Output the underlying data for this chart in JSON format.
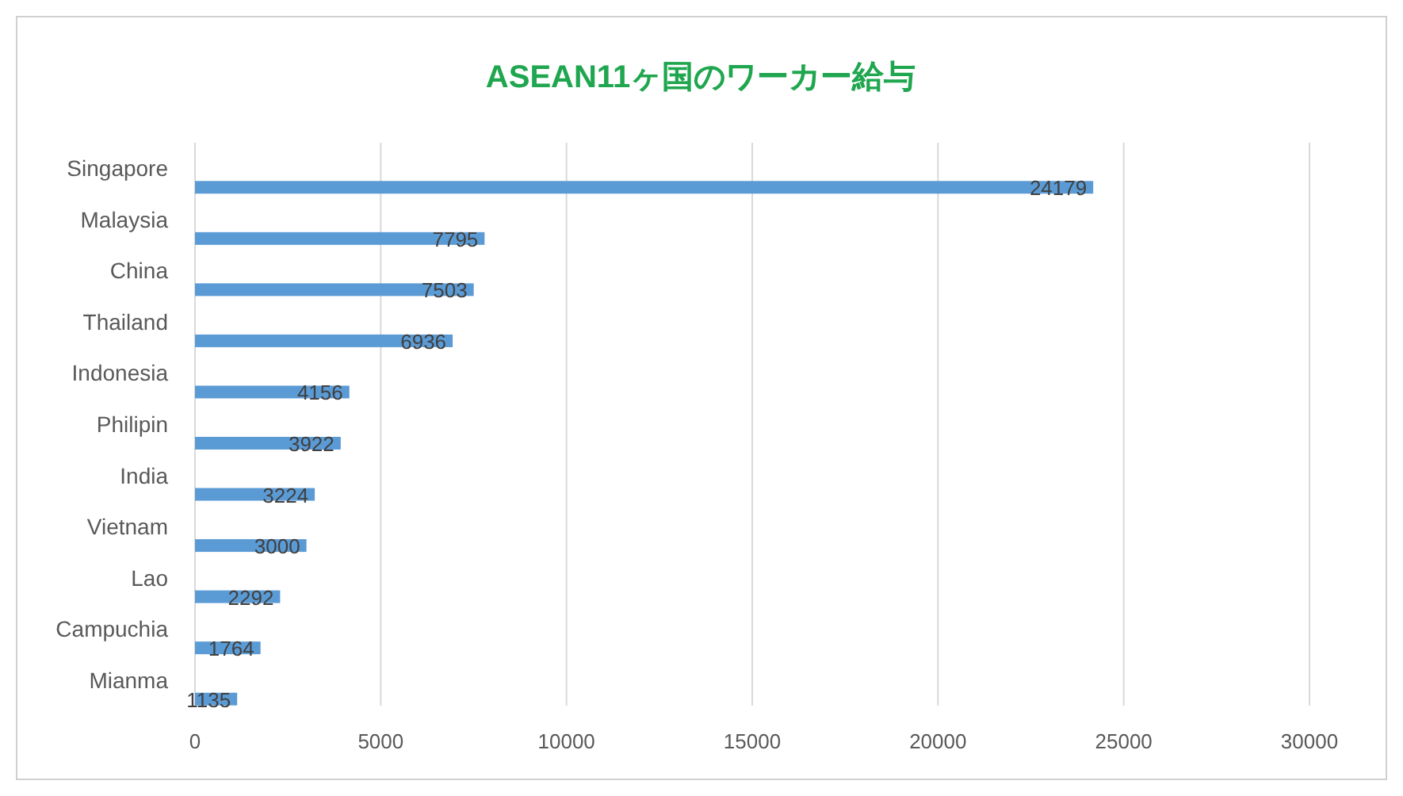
{
  "chart_data": {
    "type": "bar",
    "orientation": "horizontal",
    "title": "ASEAN11ヶ国のワーカー給与",
    "categories": [
      "Singapore",
      "Malaysia",
      "China",
      "Thailand",
      "Indonesia",
      "Philipin",
      "India",
      "Vietnam",
      "Lao",
      "Campuchia",
      "Mianma"
    ],
    "values": [
      24179,
      7795,
      7503,
      6936,
      4156,
      3922,
      3224,
      3000,
      2292,
      1764,
      1135
    ],
    "color": "#5b9bd5",
    "xlim": [
      0,
      30000
    ],
    "xticks": [
      0,
      5000,
      10000,
      15000,
      20000,
      25000,
      30000
    ],
    "grid": "x",
    "data_labels": true
  }
}
